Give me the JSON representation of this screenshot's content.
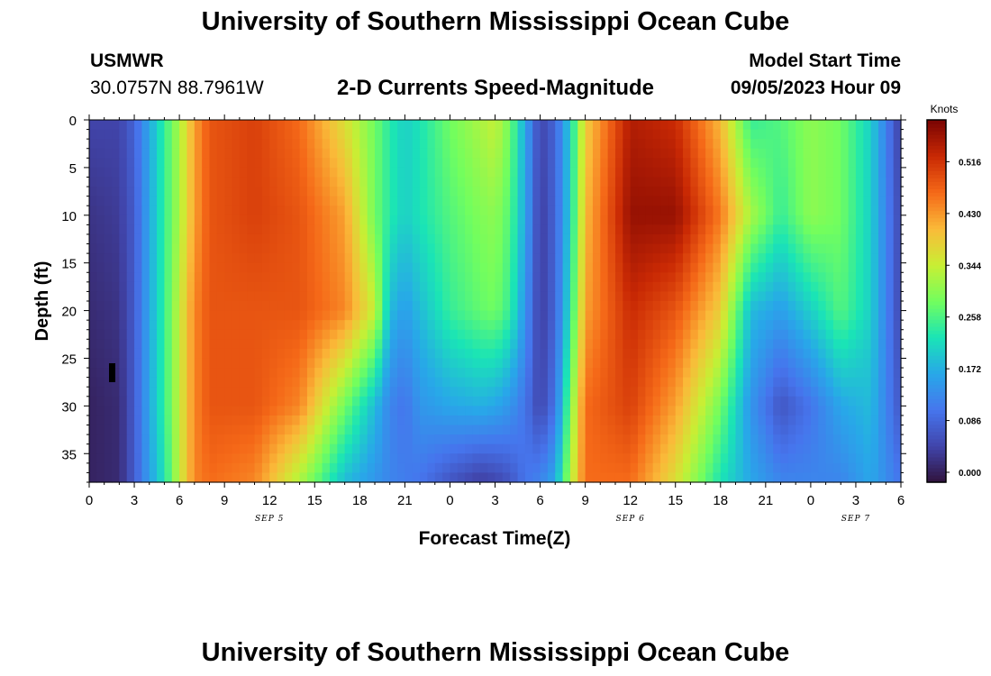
{
  "page": {
    "title_top": "University of Southern Mississippi Ocean Cube",
    "title_bottom": "University of Southern Mississippi Ocean Cube"
  },
  "header": {
    "station_code": "USMWR",
    "coordinates": "30.0757N  88.7961W",
    "subtitle": "2-D Currents Speed-Magnitude",
    "model_start_label": "Model Start Time",
    "model_start_value": "09/05/2023 Hour 09"
  },
  "chart_data": {
    "type": "heatmap",
    "title": "2-D Currents Speed-Magnitude",
    "xlabel": "Forecast Time(Z)",
    "ylabel": "Depth (ft)",
    "x_start_hour": 0,
    "x_end_hour": 54,
    "x_tick_hours": [
      0,
      3,
      6,
      9,
      12,
      15,
      18,
      21,
      24,
      27,
      30,
      33,
      36,
      39,
      42,
      45,
      48,
      51,
      54
    ],
    "x_tick_labels": [
      "0",
      "3",
      "6",
      "9",
      "12",
      "15",
      "18",
      "21",
      "0",
      "3",
      "6",
      "9",
      "12",
      "15",
      "18",
      "21",
      "0",
      "3",
      "6"
    ],
    "date_labels": [
      {
        "hour": 12,
        "text": "SEP 5"
      },
      {
        "hour": 36,
        "text": "SEP 6"
      },
      {
        "hour": 51,
        "text": "SEP 7"
      }
    ],
    "y_range_ft": [
      0,
      38
    ],
    "y_ticks": [
      0,
      5,
      10,
      15,
      20,
      25,
      30,
      35
    ],
    "colorbar": {
      "unit": "Knots",
      "min": 0.0,
      "max": 0.602,
      "tick_values": [
        0.0,
        0.086,
        0.172,
        0.258,
        0.344,
        0.43,
        0.516
      ],
      "tick_labels": [
        "0.000",
        "0.086",
        "0.172",
        "0.258",
        "0.344",
        "0.430",
        "0.516"
      ]
    },
    "sample_depths_ft": [
      0,
      10,
      20,
      30,
      38
    ],
    "sample_hours": [
      0,
      2,
      3,
      4,
      5,
      6,
      7,
      8,
      11,
      14,
      17,
      19,
      20,
      21,
      22,
      24,
      26,
      27,
      28,
      29,
      30,
      31,
      32,
      33,
      36,
      39,
      42,
      44,
      46,
      48,
      50,
      52,
      54
    ],
    "speed_knots": [
      [
        0.06,
        0.06,
        0.1,
        0.18,
        0.26,
        0.34,
        0.44,
        0.5,
        0.52,
        0.48,
        0.38,
        0.3,
        0.25,
        0.22,
        0.24,
        0.3,
        0.34,
        0.36,
        0.3,
        0.18,
        0.06,
        0.1,
        0.22,
        0.4,
        0.56,
        0.54,
        0.42,
        0.26,
        0.28,
        0.32,
        0.3,
        0.22,
        0.05
      ],
      [
        0.04,
        0.05,
        0.09,
        0.18,
        0.26,
        0.34,
        0.44,
        0.5,
        0.52,
        0.5,
        0.44,
        0.3,
        0.25,
        0.22,
        0.24,
        0.28,
        0.31,
        0.32,
        0.28,
        0.18,
        0.05,
        0.1,
        0.22,
        0.42,
        0.58,
        0.58,
        0.47,
        0.34,
        0.26,
        0.32,
        0.3,
        0.22,
        0.06
      ],
      [
        0.03,
        0.04,
        0.09,
        0.18,
        0.26,
        0.36,
        0.46,
        0.5,
        0.5,
        0.5,
        0.46,
        0.36,
        0.2,
        0.17,
        0.2,
        0.26,
        0.29,
        0.3,
        0.26,
        0.16,
        0.05,
        0.1,
        0.24,
        0.44,
        0.54,
        0.5,
        0.4,
        0.2,
        0.17,
        0.22,
        0.28,
        0.22,
        0.06
      ],
      [
        0.02,
        0.03,
        0.09,
        0.18,
        0.26,
        0.36,
        0.46,
        0.5,
        0.5,
        0.46,
        0.3,
        0.2,
        0.14,
        0.12,
        0.16,
        0.18,
        0.19,
        0.18,
        0.16,
        0.12,
        0.06,
        0.12,
        0.3,
        0.48,
        0.52,
        0.44,
        0.3,
        0.16,
        0.08,
        0.12,
        0.18,
        0.2,
        0.08
      ],
      [
        0.02,
        0.03,
        0.09,
        0.17,
        0.24,
        0.36,
        0.46,
        0.48,
        0.46,
        0.34,
        0.2,
        0.16,
        0.14,
        0.13,
        0.12,
        0.08,
        0.05,
        0.06,
        0.08,
        0.12,
        0.14,
        0.18,
        0.34,
        0.48,
        0.48,
        0.38,
        0.24,
        0.18,
        0.14,
        0.14,
        0.14,
        0.18,
        0.12
      ]
    ]
  }
}
